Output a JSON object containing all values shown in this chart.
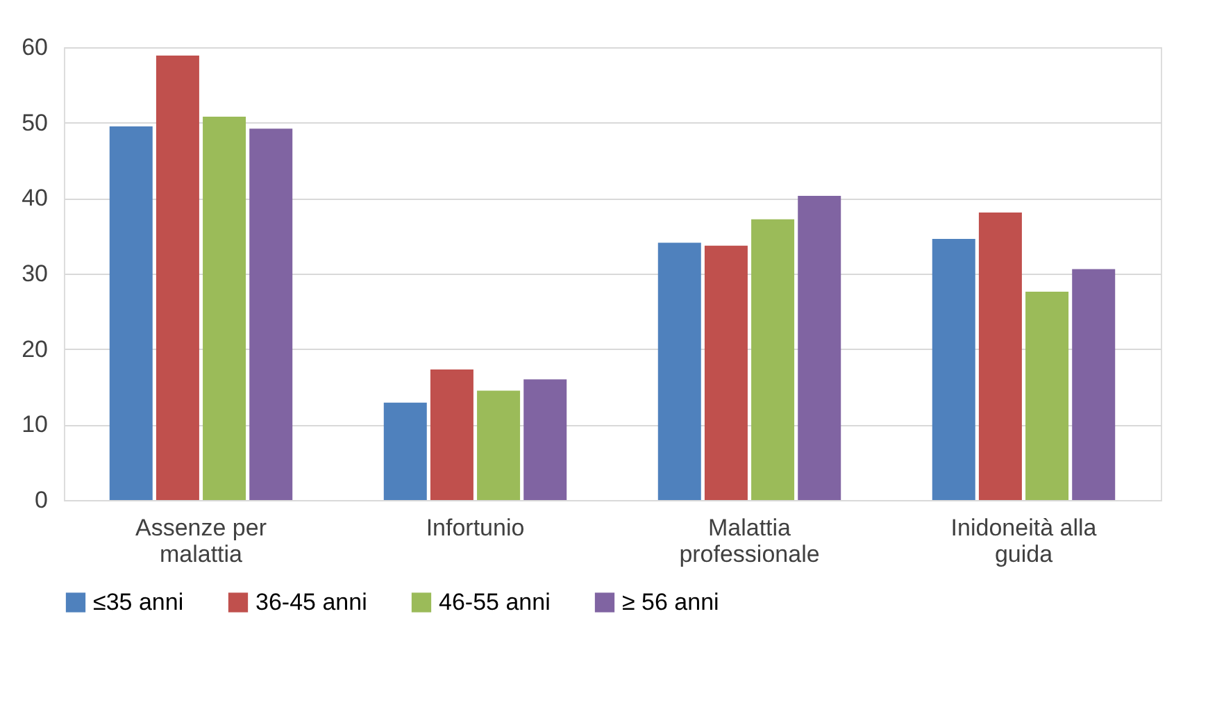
{
  "chart_data": {
    "type": "bar",
    "categories": [
      "Assenze per malattia",
      "Infortunio",
      "Malattia professionale",
      "Inidoneità alla guida"
    ],
    "series": [
      {
        "name": "≤35 anni",
        "color": "#4f81bd",
        "values": [
          49.5,
          12.9,
          34.1,
          34.6
        ]
      },
      {
        "name": "36-45 anni",
        "color": "#c0504d",
        "values": [
          58.9,
          17.3,
          33.7,
          38.1
        ]
      },
      {
        "name": "46-55 anni",
        "color": "#9bbb59",
        "values": [
          50.8,
          14.5,
          37.2,
          27.6
        ]
      },
      {
        "name": "≥ 56 anni",
        "color": "#8064a2",
        "values": [
          49.2,
          16.0,
          40.3,
          30.6
        ]
      }
    ],
    "ylim": [
      0,
      60
    ],
    "yticks": [
      0,
      10,
      20,
      30,
      40,
      50,
      60
    ],
    "grid": "y",
    "legend": "bottom"
  }
}
